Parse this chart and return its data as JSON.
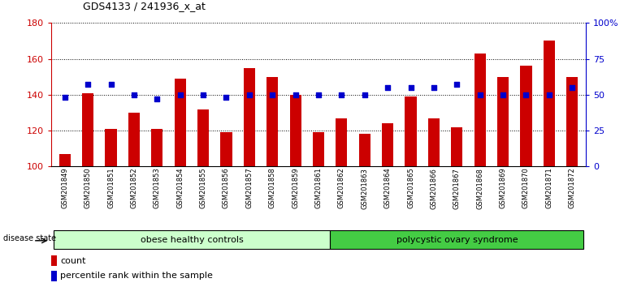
{
  "title": "GDS4133 / 241936_x_at",
  "samples": [
    "GSM201849",
    "GSM201850",
    "GSM201851",
    "GSM201852",
    "GSM201853",
    "GSM201854",
    "GSM201855",
    "GSM201856",
    "GSM201857",
    "GSM201858",
    "GSM201859",
    "GSM201861",
    "GSM201862",
    "GSM201863",
    "GSM201864",
    "GSM201865",
    "GSM201866",
    "GSM201867",
    "GSM201868",
    "GSM201869",
    "GSM201870",
    "GSM201871",
    "GSM201872"
  ],
  "counts": [
    107,
    141,
    121,
    130,
    121,
    149,
    132,
    119,
    155,
    150,
    140,
    119,
    127,
    118,
    124,
    139,
    127,
    122,
    163,
    150,
    156,
    170,
    150
  ],
  "percentiles": [
    48,
    57,
    57,
    50,
    47,
    50,
    50,
    48,
    50,
    50,
    50,
    50,
    50,
    50,
    55,
    55,
    55,
    57,
    50,
    50,
    50,
    50,
    55
  ],
  "group1_label": "obese healthy controls",
  "group1_count": 12,
  "group2_label": "polycystic ovary syndrome",
  "group2_count": 11,
  "disease_state_label": "disease state",
  "bar_color": "#cc0000",
  "dot_color": "#0000cc",
  "group1_bg": "#ccffcc",
  "group2_bg": "#44cc44",
  "ylim_left": [
    100,
    180
  ],
  "ylim_right": [
    0,
    100
  ],
  "yticks_left": [
    100,
    120,
    140,
    160,
    180
  ],
  "yticks_right": [
    0,
    25,
    50,
    75,
    100
  ],
  "ytick_labels_right": [
    "0",
    "25",
    "50",
    "75",
    "100%"
  ],
  "legend_count": "count",
  "legend_percentile": "percentile rank within the sample",
  "bar_width": 0.5
}
